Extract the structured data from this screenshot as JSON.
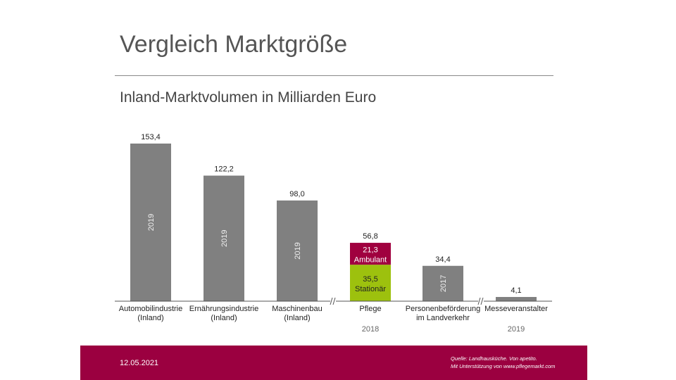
{
  "title": "Vergleich Marktgröße",
  "subtitle": "Inland-Marktvolumen in Milliarden Euro",
  "footer": {
    "date": "12.05.2021",
    "source_line1": "Quelle: Landhausküche. Von apetito.",
    "source_line2": "Mit Unterstützung von www.pflegemarkt.com"
  },
  "colors": {
    "bar": "#808080",
    "ambulant": "#a0003f",
    "stationaer": "#9dc10e",
    "footer": "#9b0040"
  },
  "chart_data": {
    "type": "bar",
    "stacked_category": "Pflege",
    "categories": [
      {
        "label": [
          "Automobilindustrie",
          "(Inland)"
        ],
        "value": 153.4,
        "value_label": "153,4",
        "year_in_bar": "2019",
        "year_below": ""
      },
      {
        "label": [
          "Ernährungsindustrie",
          "(Inland)"
        ],
        "value": 122.2,
        "value_label": "122,2",
        "year_in_bar": "2019",
        "year_below": ""
      },
      {
        "label": [
          "Maschinenbau",
          "(Inland)"
        ],
        "value": 98.0,
        "value_label": "98,0",
        "year_in_bar": "2019",
        "year_below": ""
      },
      {
        "label": [
          "Pflege"
        ],
        "value": 56.8,
        "value_label": "56,8",
        "year_in_bar": "",
        "year_below": "2018",
        "segments": [
          {
            "name": "Stationär",
            "value": 35.5,
            "value_label": "35,5"
          },
          {
            "name": "Ambulant",
            "value": 21.3,
            "value_label": "21,3"
          }
        ]
      },
      {
        "label": [
          "Personenbeförderung",
          "im Landverkehr"
        ],
        "value": 34.4,
        "value_label": "34,4",
        "year_in_bar": "2017",
        "year_below": ""
      },
      {
        "label": [
          "Messeveranstalter"
        ],
        "value": 4.1,
        "value_label": "4,1",
        "year_in_bar": "",
        "year_below": "2019"
      }
    ],
    "axis_breaks": "between Maschinenbau/Pflege and Personenbeförderung/Messeveranstalter",
    "ylim": [
      0,
      153.4
    ],
    "grid": false,
    "legend": "none"
  }
}
